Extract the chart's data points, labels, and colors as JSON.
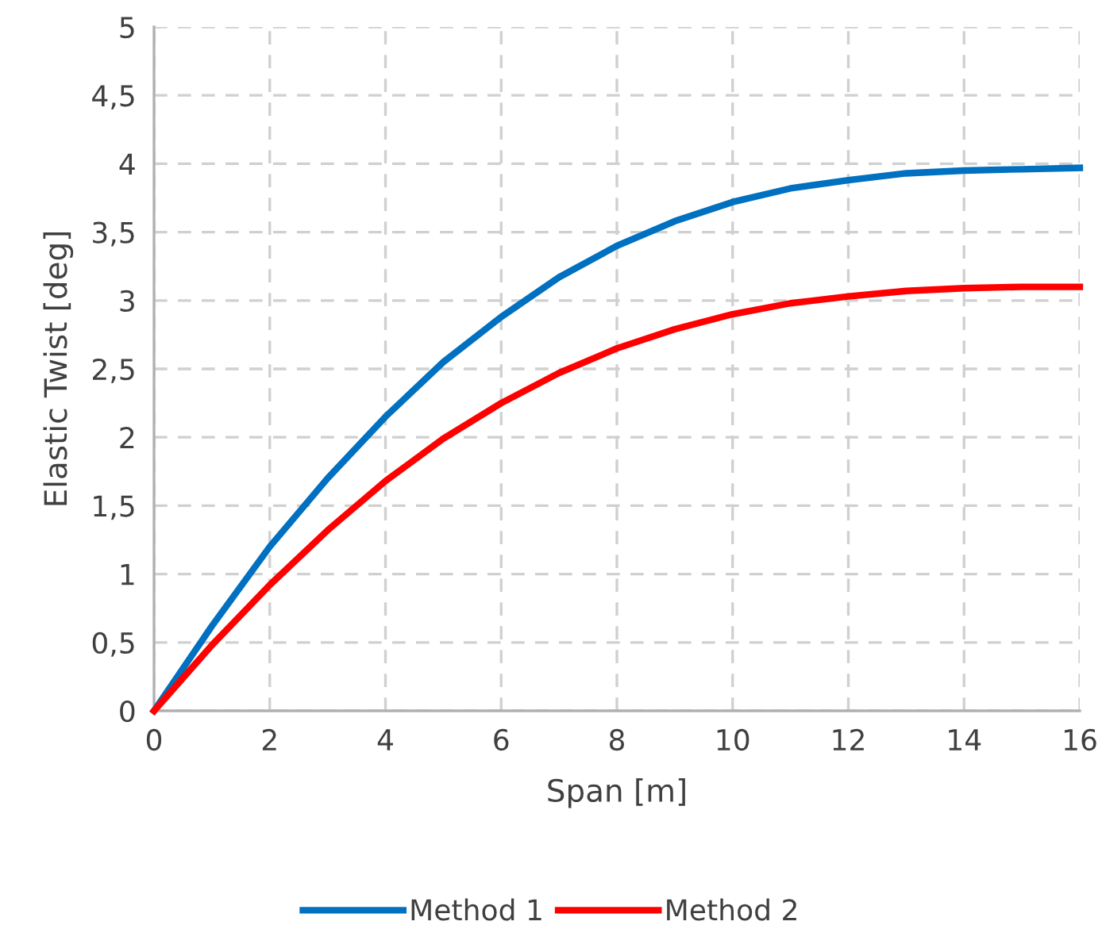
{
  "chart_data": {
    "type": "line",
    "xlabel": "Span [m]",
    "ylabel": "Elastic Twist [deg]",
    "x": [
      0,
      1,
      2,
      3,
      4,
      5,
      6,
      7,
      8,
      9,
      10,
      11,
      12,
      13,
      14,
      15,
      16
    ],
    "series": [
      {
        "name": "Method 1",
        "color": "#0070c0",
        "values": [
          0,
          0.62,
          1.2,
          1.7,
          2.15,
          2.55,
          2.88,
          3.17,
          3.4,
          3.58,
          3.72,
          3.82,
          3.88,
          3.93,
          3.95,
          3.96,
          3.97
        ]
      },
      {
        "name": "Method 2",
        "color": "#ff0000",
        "values": [
          0,
          0.48,
          0.92,
          1.32,
          1.68,
          1.99,
          2.25,
          2.47,
          2.65,
          2.79,
          2.9,
          2.98,
          3.03,
          3.07,
          3.09,
          3.1,
          3.1
        ]
      }
    ],
    "xlim": [
      0,
      16
    ],
    "xticks": [
      0,
      2,
      4,
      6,
      8,
      10,
      12,
      14,
      16
    ],
    "ylim": [
      0,
      5
    ],
    "yticks": [
      0,
      {
        "value": 0.5,
        "label": "0,5"
      },
      1,
      {
        "value": 1.5,
        "label": "1,5"
      },
      2,
      {
        "value": 2.5,
        "label": "2,5"
      },
      3,
      {
        "value": 3.5,
        "label": "3,5"
      },
      4,
      {
        "value": 4.5,
        "label": "4,5"
      },
      5
    ],
    "grid": true,
    "legend": "bottom",
    "marker": "none",
    "line_style": "solid"
  }
}
